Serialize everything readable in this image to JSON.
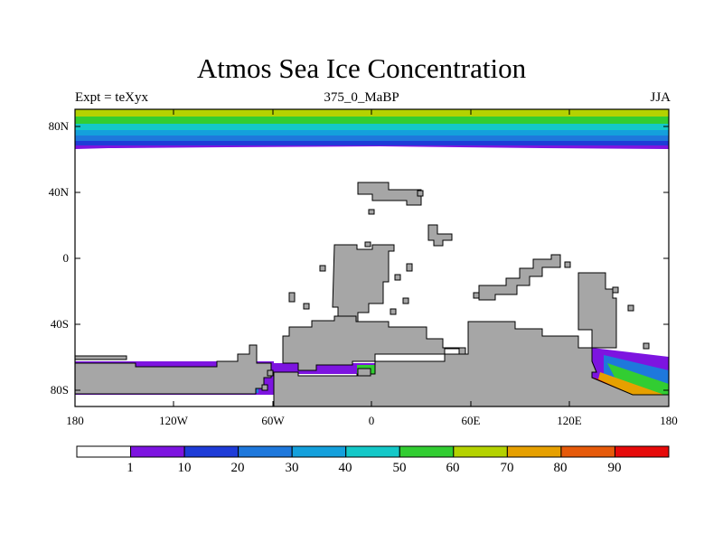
{
  "title": "Atmos Sea Ice Concentration",
  "subtitle_left": "Expt = teXyx",
  "subtitle_center": "375_0_MaBP",
  "subtitle_right": "JJA",
  "axes": {
    "x_ticks": [
      "180",
      "120W",
      "60W",
      "0",
      "60E",
      "120E",
      "180"
    ],
    "y_ticks": [
      "80N",
      "40N",
      "0",
      "40S",
      "80S"
    ]
  },
  "colorbar": {
    "labels": [
      "1",
      "10",
      "20",
      "30",
      "40",
      "50",
      "60",
      "70",
      "80",
      "90"
    ],
    "colors": [
      "#ffffff",
      "#7d14e0",
      "#1e3cd8",
      "#1e78dc",
      "#14a0dc",
      "#14c8c8",
      "#32cd32",
      "#b4d200",
      "#e6a000",
      "#e65a0a",
      "#e60a0a"
    ]
  },
  "colors": {
    "land": "#a6a6a6",
    "ocean": "#ffffff",
    "frame": "#000000"
  }
}
